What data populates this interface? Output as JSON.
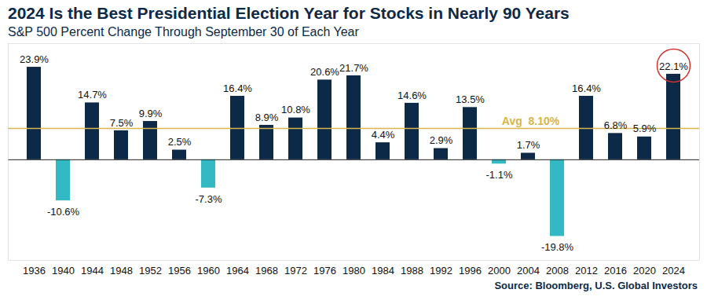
{
  "chart_data": {
    "type": "bar",
    "title": "2024 Is the Best Presidential Election Year for Stocks in Nearly 90 Years",
    "subtitle": "S&P 500 Percent Change Through September 30 of Each Year",
    "caption": "Source: Bloomberg, U.S. Global Investors",
    "categories": [
      "1936",
      "1940",
      "1944",
      "1948",
      "1952",
      "1956",
      "1960",
      "1964",
      "1968",
      "1972",
      "1976",
      "1980",
      "1984",
      "1988",
      "1992",
      "1996",
      "2000",
      "2004",
      "2008",
      "2012",
      "2016",
      "2020",
      "2024"
    ],
    "values": [
      23.9,
      -10.6,
      14.7,
      7.5,
      9.9,
      2.5,
      -7.3,
      16.4,
      8.9,
      10.8,
      20.6,
      21.7,
      4.4,
      14.6,
      2.9,
      13.5,
      -1.1,
      1.7,
      -19.8,
      16.4,
      6.8,
      5.9,
      22.1
    ],
    "value_labels": [
      "23.9%",
      "-10.6%",
      "14.7%",
      "7.5%",
      "9.9%",
      "2.5%",
      "-7.3%",
      "16.4%",
      "8.9%",
      "10.8%",
      "20.6%",
      "21.7%",
      "4.4%",
      "14.6%",
      "2.9%",
      "13.5%",
      "-1.1%",
      "1.7%",
      "-19.8%",
      "16.4%",
      "6.8%",
      "5.9%",
      "22.1%"
    ],
    "colors": [
      "#0c2a48",
      "#33b9c4",
      "#0c2a48",
      "#0c2a48",
      "#0c2a48",
      "#0c2a48",
      "#33b9c4",
      "#0c2a48",
      "#0c2a48",
      "#0c2a48",
      "#0c2a48",
      "#0c2a48",
      "#0c2a48",
      "#0c2a48",
      "#0c2a48",
      "#0c2a48",
      "#33b9c4",
      "#0c2a48",
      "#33b9c4",
      "#0c2a48",
      "#0c2a48",
      "#0c2a48",
      "#0c2a48"
    ],
    "average": {
      "value": 8.1,
      "label": "Avg  8.10%"
    },
    "ylim": [
      -26,
      30
    ],
    "yticks": [],
    "grid": false,
    "data_labels": true,
    "tick_labels": "x"
  }
}
